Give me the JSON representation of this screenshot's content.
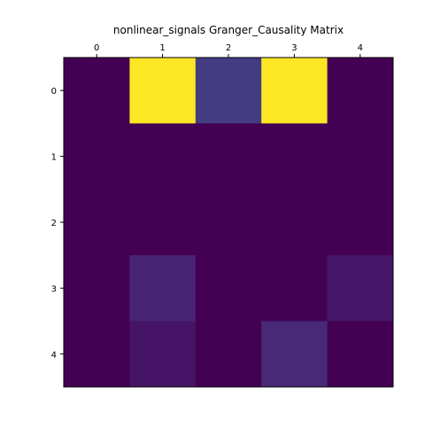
{
  "chart_data": {
    "type": "heatmap",
    "title": "nonlinear_signals Granger_Causality Matrix",
    "x_ticks": [
      "0",
      "1",
      "2",
      "3",
      "4"
    ],
    "y_ticks": [
      "0",
      "1",
      "2",
      "3",
      "4"
    ],
    "x_axis_position": "top",
    "colormap": "viridis",
    "values": [
      [
        0.0,
        1.0,
        0.22,
        1.0,
        0.0
      ],
      [
        0.0,
        0.0,
        0.0,
        0.0,
        0.0
      ],
      [
        0.0,
        0.0,
        0.0,
        0.0,
        0.0
      ],
      [
        0.0,
        0.13,
        0.0,
        0.0,
        0.08
      ],
      [
        0.0,
        0.07,
        0.0,
        0.15,
        0.0
      ]
    ],
    "colors": {
      "low": "#440154",
      "high": "#fde725",
      "axis": "#000000"
    }
  }
}
